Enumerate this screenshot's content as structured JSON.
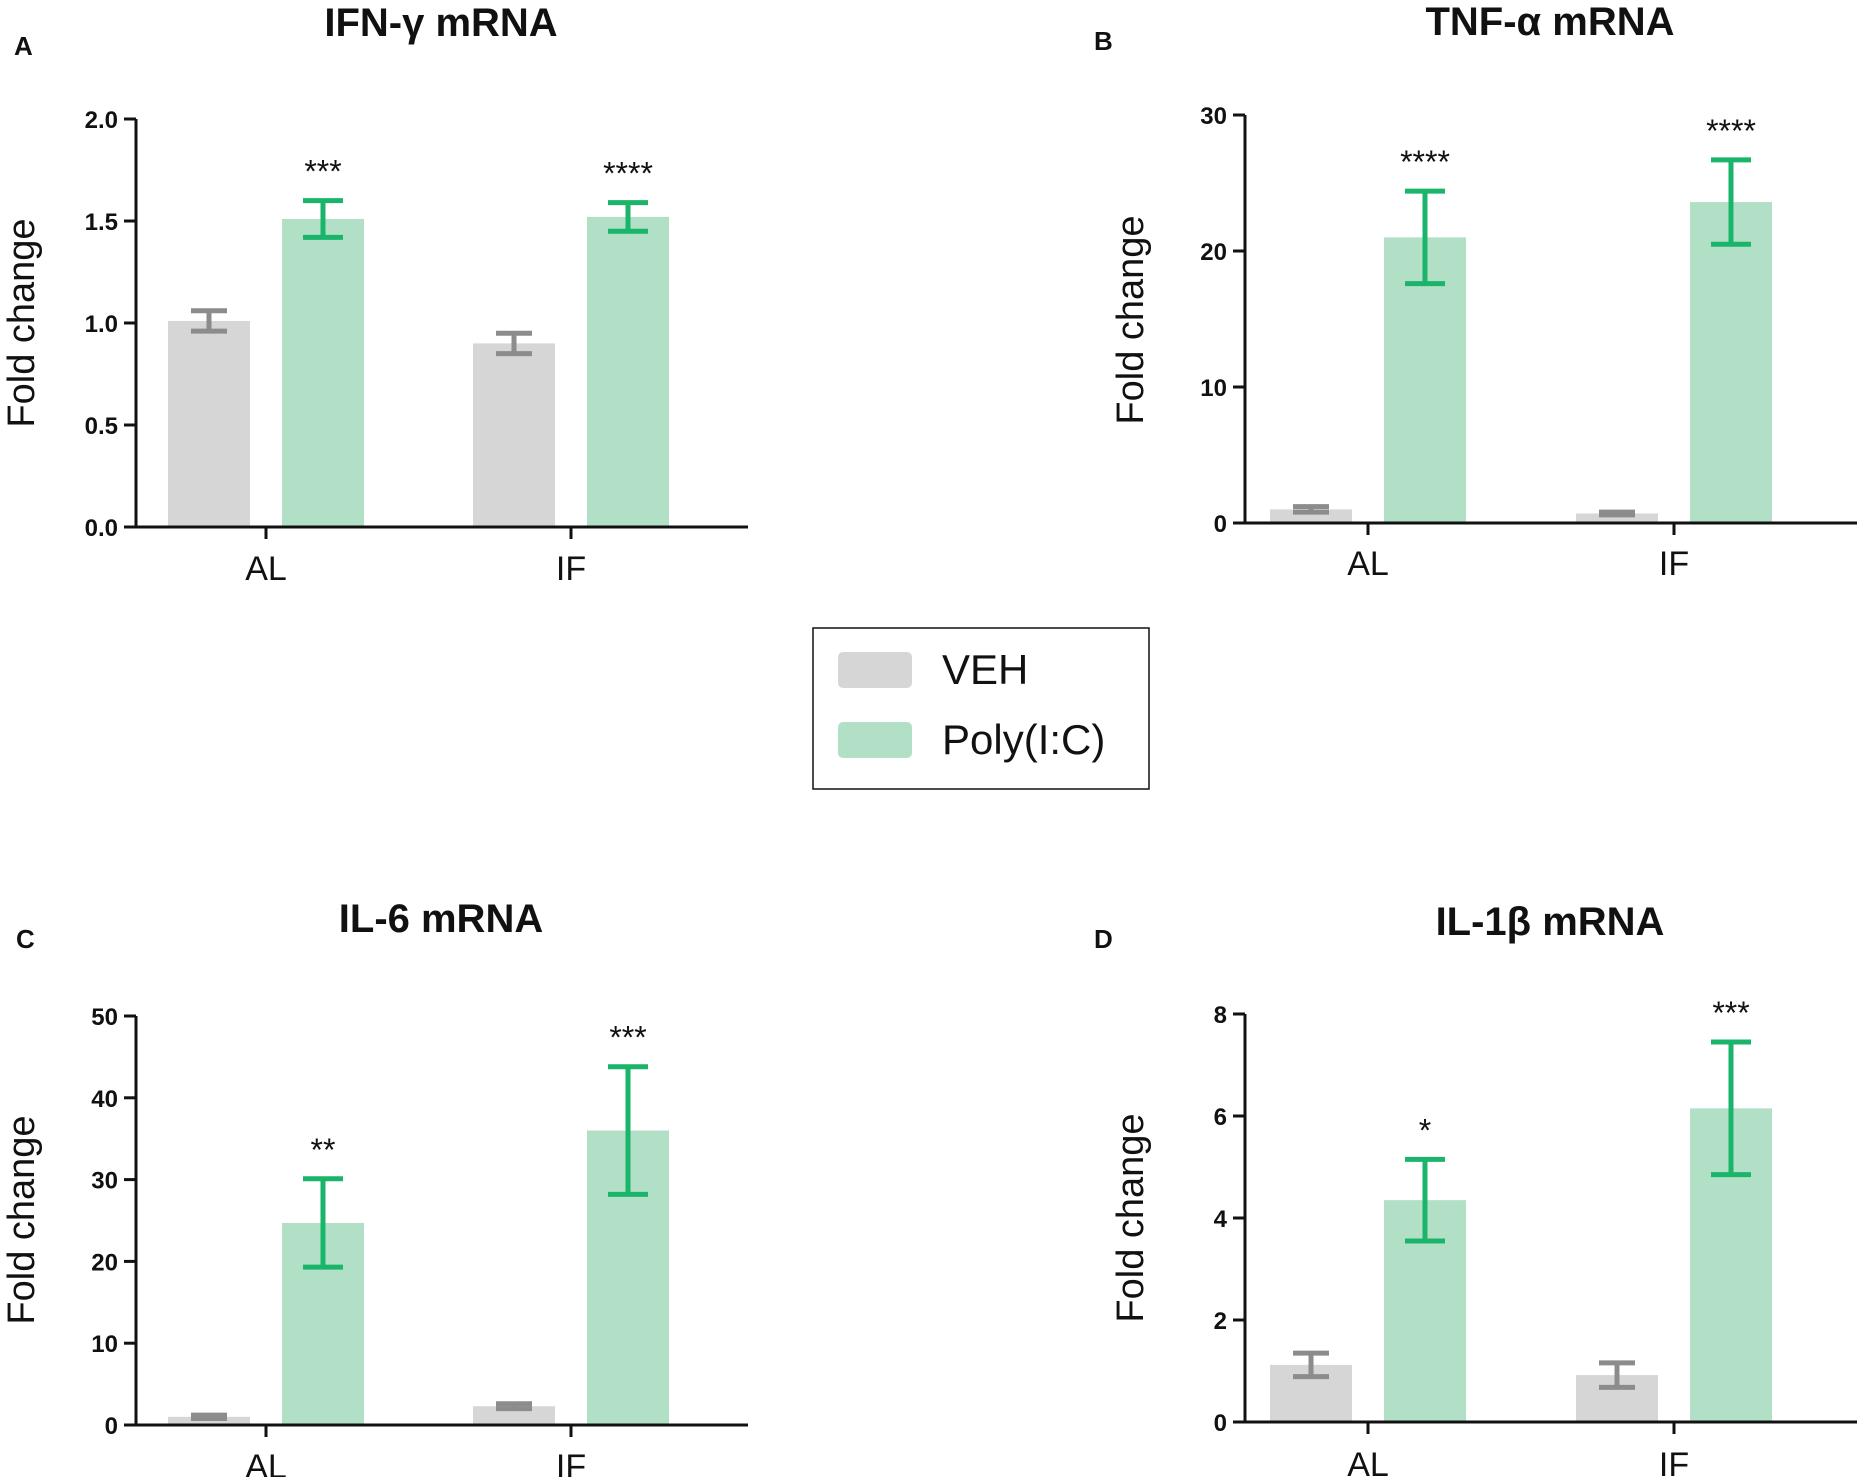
{
  "colors": {
    "veh_fill": "#d6d6d6",
    "veh_err": "#8c8c8c",
    "poly_fill": "#b2e0c7",
    "poly_err": "#1ab46b",
    "axis": "#111111"
  },
  "legend": {
    "items": [
      {
        "label": "VEH",
        "color": "#d6d6d6"
      },
      {
        "label": "Poly(I:C)",
        "color": "#b2e0c7"
      }
    ]
  },
  "chart_data": [
    {
      "panel": "A",
      "type": "bar",
      "title": "IFN-γ mRNA",
      "ylabel": "Fold change",
      "ylim": [
        0,
        2.0
      ],
      "yticks": [
        "0.0",
        "0.5",
        "1.0",
        "1.5",
        "2.0"
      ],
      "ytick_values": [
        0,
        0.5,
        1.0,
        1.5,
        2.0
      ],
      "categories": [
        "AL",
        "IF"
      ],
      "series": [
        {
          "name": "VEH",
          "values": [
            1.01,
            0.9
          ],
          "errors": [
            0.05,
            0.05
          ]
        },
        {
          "name": "Poly(I:C)",
          "values": [
            1.51,
            1.52
          ],
          "errors": [
            0.09,
            0.07
          ]
        }
      ],
      "significance": [
        {
          "category": "AL",
          "label": "***"
        },
        {
          "category": "IF",
          "label": "****"
        }
      ]
    },
    {
      "panel": "B",
      "type": "bar",
      "title": "TNF-α mRNA",
      "ylabel": "Fold change",
      "ylim": [
        0,
        30
      ],
      "yticks": [
        "0",
        "10",
        "20",
        "30"
      ],
      "ytick_values": [
        0,
        10,
        20,
        30
      ],
      "categories": [
        "AL",
        "IF"
      ],
      "series": [
        {
          "name": "VEH",
          "values": [
            1.0,
            0.7
          ],
          "errors": [
            0.2,
            0.1
          ]
        },
        {
          "name": "Poly(I:C)",
          "values": [
            21.0,
            23.6
          ],
          "errors": [
            3.4,
            3.1
          ]
        }
      ],
      "significance": [
        {
          "category": "AL",
          "label": "****"
        },
        {
          "category": "IF",
          "label": "****"
        }
      ]
    },
    {
      "panel": "C",
      "type": "bar",
      "title": "IL-6 mRNA",
      "ylabel": "Fold change",
      "ylim": [
        0,
        50
      ],
      "yticks": [
        "0",
        "10",
        "20",
        "30",
        "40",
        "50"
      ],
      "ytick_values": [
        0,
        10,
        20,
        30,
        40,
        50
      ],
      "categories": [
        "AL",
        "IF"
      ],
      "series": [
        {
          "name": "VEH",
          "values": [
            1.0,
            2.3
          ],
          "errors": [
            0.2,
            0.3
          ]
        },
        {
          "name": "Poly(I:C)",
          "values": [
            24.7,
            36.0
          ],
          "errors": [
            5.4,
            7.8
          ]
        }
      ],
      "significance": [
        {
          "category": "AL",
          "label": "**"
        },
        {
          "category": "IF",
          "label": "***"
        }
      ]
    },
    {
      "panel": "D",
      "type": "bar",
      "title": "IL-1β mRNA",
      "ylabel": "Fold change",
      "ylim": [
        0,
        8
      ],
      "yticks": [
        "0",
        "2",
        "4",
        "6",
        "8"
      ],
      "ytick_values": [
        0,
        2,
        4,
        6,
        8
      ],
      "categories": [
        "AL",
        "IF"
      ],
      "series": [
        {
          "name": "VEH",
          "values": [
            1.12,
            0.92
          ],
          "errors": [
            0.23,
            0.24
          ]
        },
        {
          "name": "Poly(I:C)",
          "values": [
            4.35,
            6.15
          ],
          "errors": [
            0.8,
            1.3
          ]
        }
      ],
      "significance": [
        {
          "category": "AL",
          "label": "*"
        },
        {
          "category": "IF",
          "label": "***"
        }
      ]
    }
  ]
}
